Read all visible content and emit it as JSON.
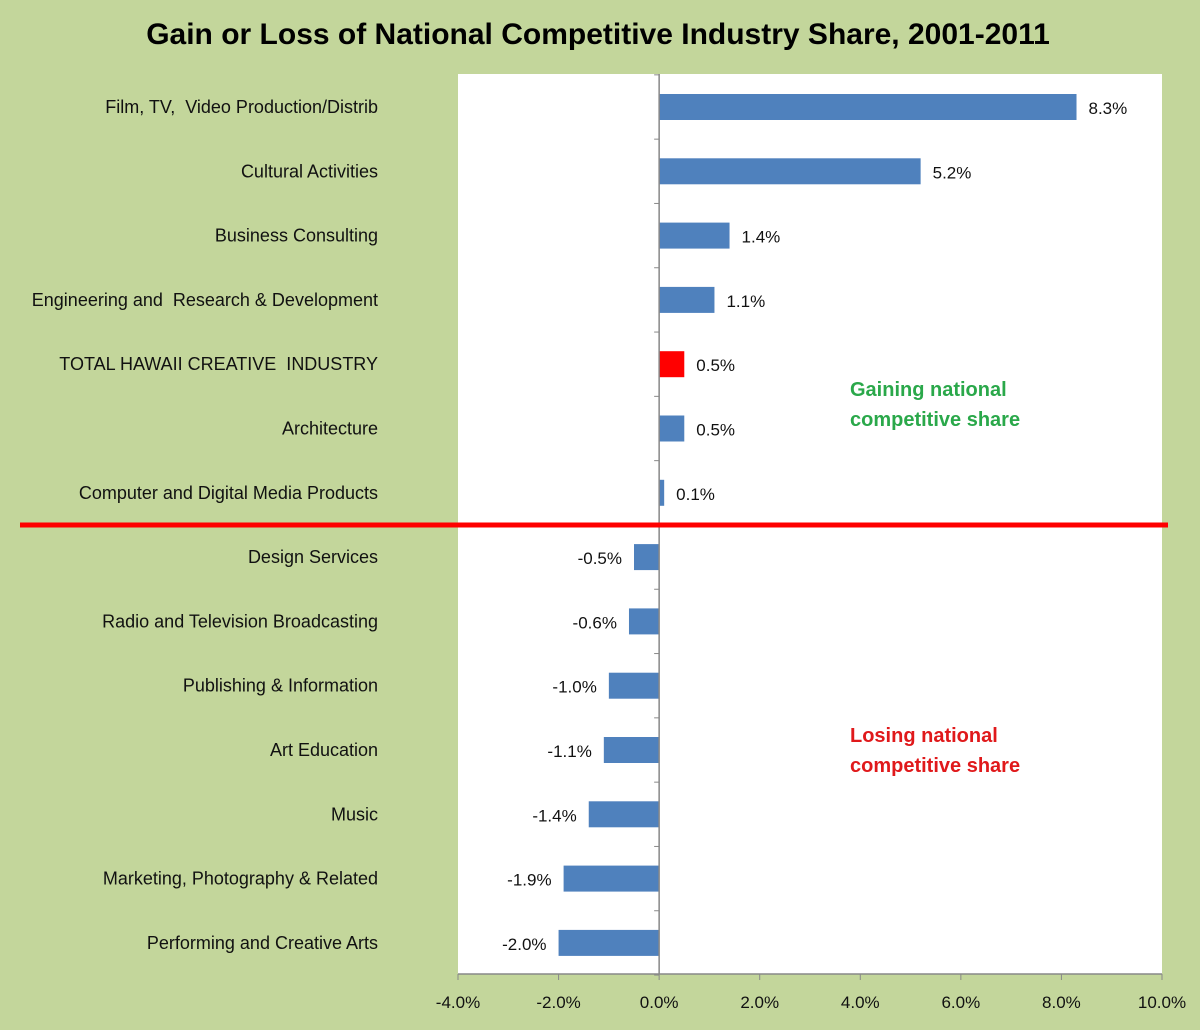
{
  "chart_data": {
    "type": "bar",
    "orientation": "horizontal",
    "title": "Gain or Loss of National Competitive Industry Share, 2001-2011",
    "categories": [
      "Film, TV,  Video Production/Distrib",
      "Cultural Activities",
      "Business Consulting",
      "Engineering and  Research & Development",
      "TOTAL HAWAII CREATIVE  INDUSTRY",
      "Architecture",
      "Computer and Digital Media Products",
      "Design Services",
      "Radio and Television Broadcasting",
      "Publishing & Information",
      "Art Education",
      "Music",
      "Marketing, Photography & Related",
      "Performing and Creative Arts"
    ],
    "values": [
      8.3,
      5.2,
      1.4,
      1.1,
      0.5,
      0.5,
      0.1,
      -0.5,
      -0.6,
      -1.0,
      -1.1,
      -1.4,
      -1.9,
      -2.0
    ],
    "value_labels": [
      "8.3%",
      "5.2%",
      "1.4%",
      "1.1%",
      "0.5%",
      "0.5%",
      "0.1%",
      "-0.5%",
      "-0.6%",
      "-1.0%",
      "-1.1%",
      "-1.4%",
      "-1.9%",
      "-2.0%"
    ],
    "highlight_index": 4,
    "xlim": [
      -4.0,
      10.0
    ],
    "x_ticks": [
      -4.0,
      -2.0,
      0.0,
      2.0,
      4.0,
      6.0,
      8.0,
      10.0
    ],
    "x_tick_labels": [
      "-4.0%",
      "-2.0%",
      "0.0%",
      "2.0%",
      "4.0%",
      "6.0%",
      "8.0%",
      "10.0%"
    ],
    "divider_after_index": 6,
    "annotations": {
      "gain": [
        "Gaining national",
        "competitive share"
      ],
      "lose": [
        "Losing national",
        "competitive share"
      ]
    },
    "colors": {
      "bar": "#4f81bd",
      "highlight": "#ff0000",
      "divider": "#ff0000",
      "gain_text": "#2aa84a",
      "lose_text": "#e0191b",
      "background": "#c3d69b",
      "plot_area": "#ffffff"
    },
    "grid": false,
    "legend": "none"
  }
}
